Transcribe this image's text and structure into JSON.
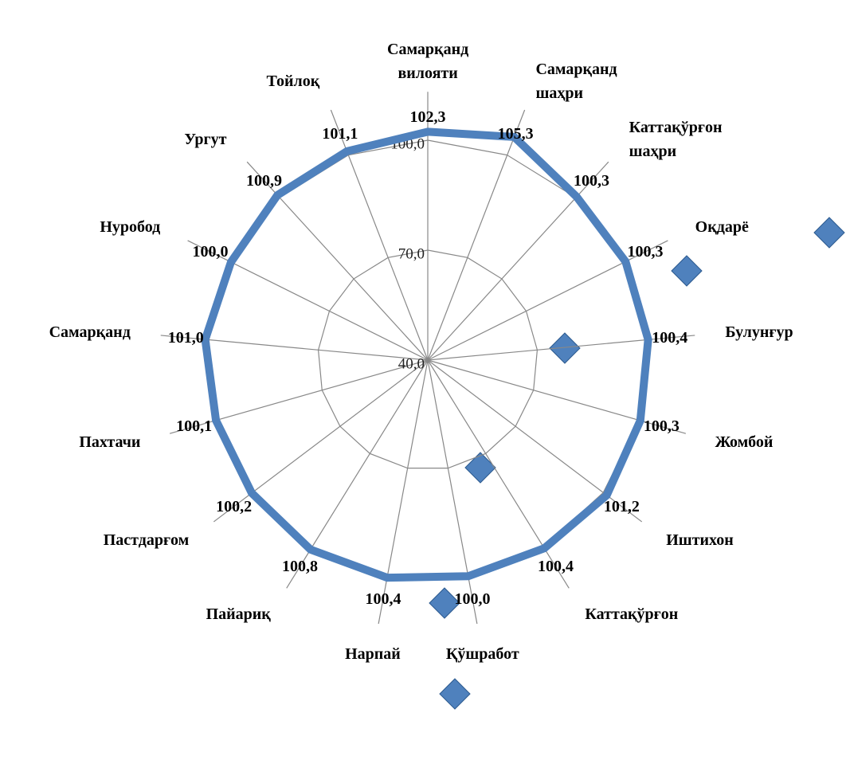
{
  "chart_data": {
    "type": "radar",
    "categories": [
      "Самарқанд\nвилояти",
      "Самарқанд\nшаҳри",
      "Каттақўрғон\nшаҳри",
      "Оқдарё",
      "Булунғур",
      "Жомбой",
      "Иштихон",
      "Каттақўрғон",
      "Қўшработ",
      "Нарпай",
      "Пайариқ",
      "Пастдарғом",
      "Пахтачи",
      "Самарқанд",
      "Нуробод",
      "Ургут",
      "Тойлоқ"
    ],
    "series": [
      {
        "color": "#4f81bd",
        "values": [
          102.3,
          105.3,
          100.3,
          100.3,
          100.4,
          100.3,
          101.2,
          100.4,
          100.0,
          100.4,
          100.8,
          100.2,
          100.1,
          101.0,
          100.0,
          100.9,
          101.1
        ],
        "value_labels": [
          "102,3",
          "105,3",
          "100,3",
          "100,3",
          "100,4",
          "100,3",
          "101,2",
          "100,4",
          "100,0",
          "100,4",
          "100,8",
          "100,2",
          "100,1",
          "101,0",
          "100,0",
          "100,9",
          "101,1"
        ]
      }
    ],
    "ylim": [
      40,
      100
    ],
    "yticks": [
      {
        "value": 40,
        "label": "40,0"
      },
      {
        "value": 70,
        "label": "70,0"
      },
      {
        "value": 100,
        "label": "100,0"
      }
    ],
    "grid": true
  }
}
